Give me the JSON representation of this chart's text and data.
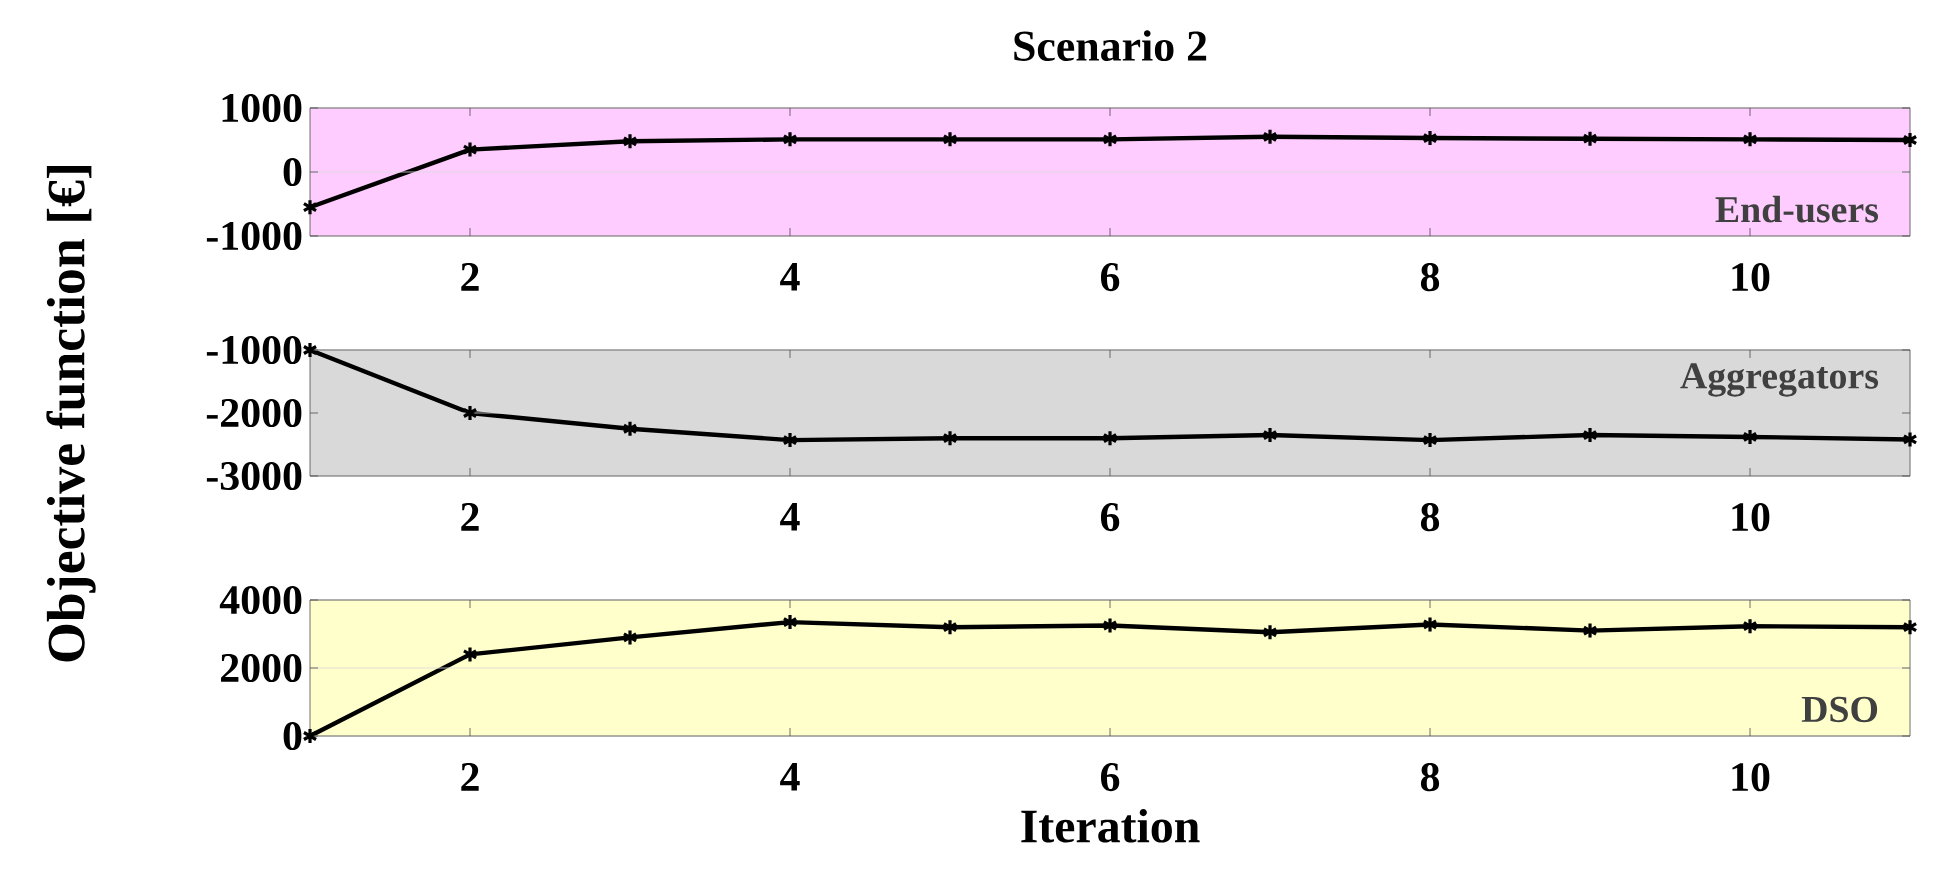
{
  "chart_data": [
    {
      "type": "line",
      "title": "Scenario 2",
      "x": [
        1,
        2,
        3,
        4,
        5,
        6,
        7,
        8,
        9,
        10,
        11
      ],
      "xlim": [
        1,
        11
      ],
      "xticks": [
        2,
        4,
        6,
        8,
        10
      ],
      "ylim": [
        -1000,
        1000
      ],
      "yticks": [
        -1000,
        0,
        1000
      ],
      "grid": "y",
      "marker": "cross",
      "line_style": "solid",
      "series": [
        {
          "color": "#000000",
          "values": [
            -550,
            350,
            480,
            510,
            510,
            510,
            550,
            530,
            520,
            510,
            500
          ]
        }
      ],
      "bands": [
        {
          "axis": "y",
          "from": -1000,
          "to": 1000,
          "color": "#ffccff"
        }
      ],
      "annotations": [
        "End-users"
      ]
    },
    {
      "type": "line",
      "ylabel": "Objective function [€]",
      "x": [
        1,
        2,
        3,
        4,
        5,
        6,
        7,
        8,
        9,
        10,
        11
      ],
      "xlim": [
        1,
        11
      ],
      "xticks": [
        2,
        4,
        6,
        8,
        10
      ],
      "ylim": [
        -3000,
        -1000
      ],
      "yticks": [
        -3000,
        -2000,
        -1000
      ],
      "grid": "y",
      "marker": "cross",
      "line_style": "solid",
      "series": [
        {
          "color": "#000000",
          "values": [
            -1000,
            -2000,
            -2250,
            -2430,
            -2400,
            -2400,
            -2350,
            -2430,
            -2350,
            -2380,
            -2420
          ]
        }
      ],
      "bands": [
        {
          "axis": "y",
          "from": -3000,
          "to": -1000,
          "color": "#d9d9d9"
        }
      ],
      "annotations": [
        "Aggregators"
      ]
    },
    {
      "type": "line",
      "xlabel": "Iteration",
      "x": [
        1,
        2,
        3,
        4,
        5,
        6,
        7,
        8,
        9,
        10,
        11
      ],
      "xlim": [
        1,
        11
      ],
      "xticks": [
        2,
        4,
        6,
        8,
        10
      ],
      "ylim": [
        0,
        4000
      ],
      "yticks": [
        0,
        2000,
        4000
      ],
      "grid": "y",
      "marker": "cross",
      "line_style": "solid",
      "series": [
        {
          "color": "#000000",
          "values": [
            0,
            2400,
            2900,
            3350,
            3200,
            3250,
            3050,
            3280,
            3100,
            3230,
            3200
          ]
        }
      ],
      "bands": [
        {
          "axis": "y",
          "from": 0,
          "to": 4000,
          "color": "#ffffcc"
        }
      ],
      "annotations": [
        "DSO"
      ]
    }
  ]
}
